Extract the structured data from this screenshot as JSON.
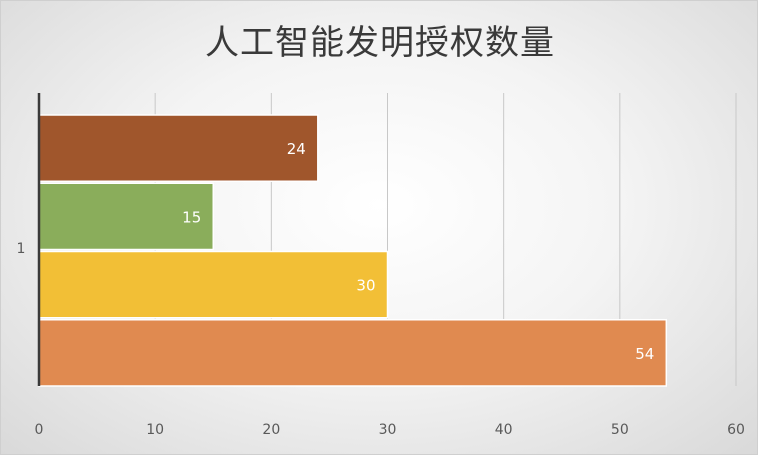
{
  "chart_data": {
    "type": "bar",
    "orientation": "horizontal",
    "title": "人工智能发明授权数量",
    "categories": [
      "1"
    ],
    "series": [
      {
        "values": [
          24
        ],
        "color": "#a0562c"
      },
      {
        "values": [
          15
        ],
        "color": "#8aad5b"
      },
      {
        "values": [
          30
        ],
        "color": "#f2bf36"
      },
      {
        "values": [
          54
        ],
        "color": "#e08a50"
      }
    ],
    "xlim": [
      0,
      60
    ],
    "xticks": [
      "0",
      "10",
      "20",
      "30",
      "40",
      "50",
      "60"
    ],
    "grid": true,
    "data_labels": true,
    "legend": "none"
  }
}
